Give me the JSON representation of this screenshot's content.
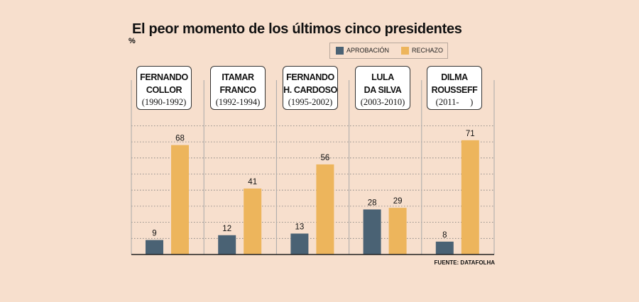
{
  "title": "El peor momento de los últimos cinco presidentes",
  "unit": "%",
  "source": "FUENTE: DATAFOLHA",
  "colors": {
    "aprobacion": "#4a6274",
    "rechazo": "#edb55c",
    "background": "#f7dfcd"
  },
  "legend": [
    {
      "label": "APROBACIÓN",
      "color": "#4a6274"
    },
    {
      "label": "RECHAZO",
      "color": "#edb55c"
    }
  ],
  "presidents": [
    {
      "name": "FERNANDO\nCOLLOR",
      "years": "(1990-1992)"
    },
    {
      "name": "ITAMAR\nFRANCO",
      "years": "(1992-1994)"
    },
    {
      "name": "FERNANDO\nH. CARDOSO",
      "years": "(1995-2002)"
    },
    {
      "name": "LULA\nDA SILVA",
      "years": "(2003-2010)"
    },
    {
      "name": "DILMA\nROUSSEFF",
      "years": "(2011-     )"
    }
  ],
  "chart_data": {
    "type": "bar",
    "title": "El peor momento de los últimos cinco presidentes",
    "ylabel": "%",
    "categories": [
      "FERNANDO COLLOR (1990-1992)",
      "ITAMAR FRANCO (1992-1994)",
      "FERNANDO H. CARDOSO (1995-2002)",
      "LULA DA SILVA (2003-2010)",
      "DILMA ROUSSEFF (2011- )"
    ],
    "series": [
      {
        "name": "APROBACIÓN",
        "values": [
          9,
          12,
          13,
          28,
          8
        ]
      },
      {
        "name": "RECHAZO",
        "values": [
          68,
          41,
          56,
          29,
          71
        ]
      }
    ],
    "ylim": [
      0,
      80
    ],
    "grid": true,
    "legend_position": "top"
  }
}
